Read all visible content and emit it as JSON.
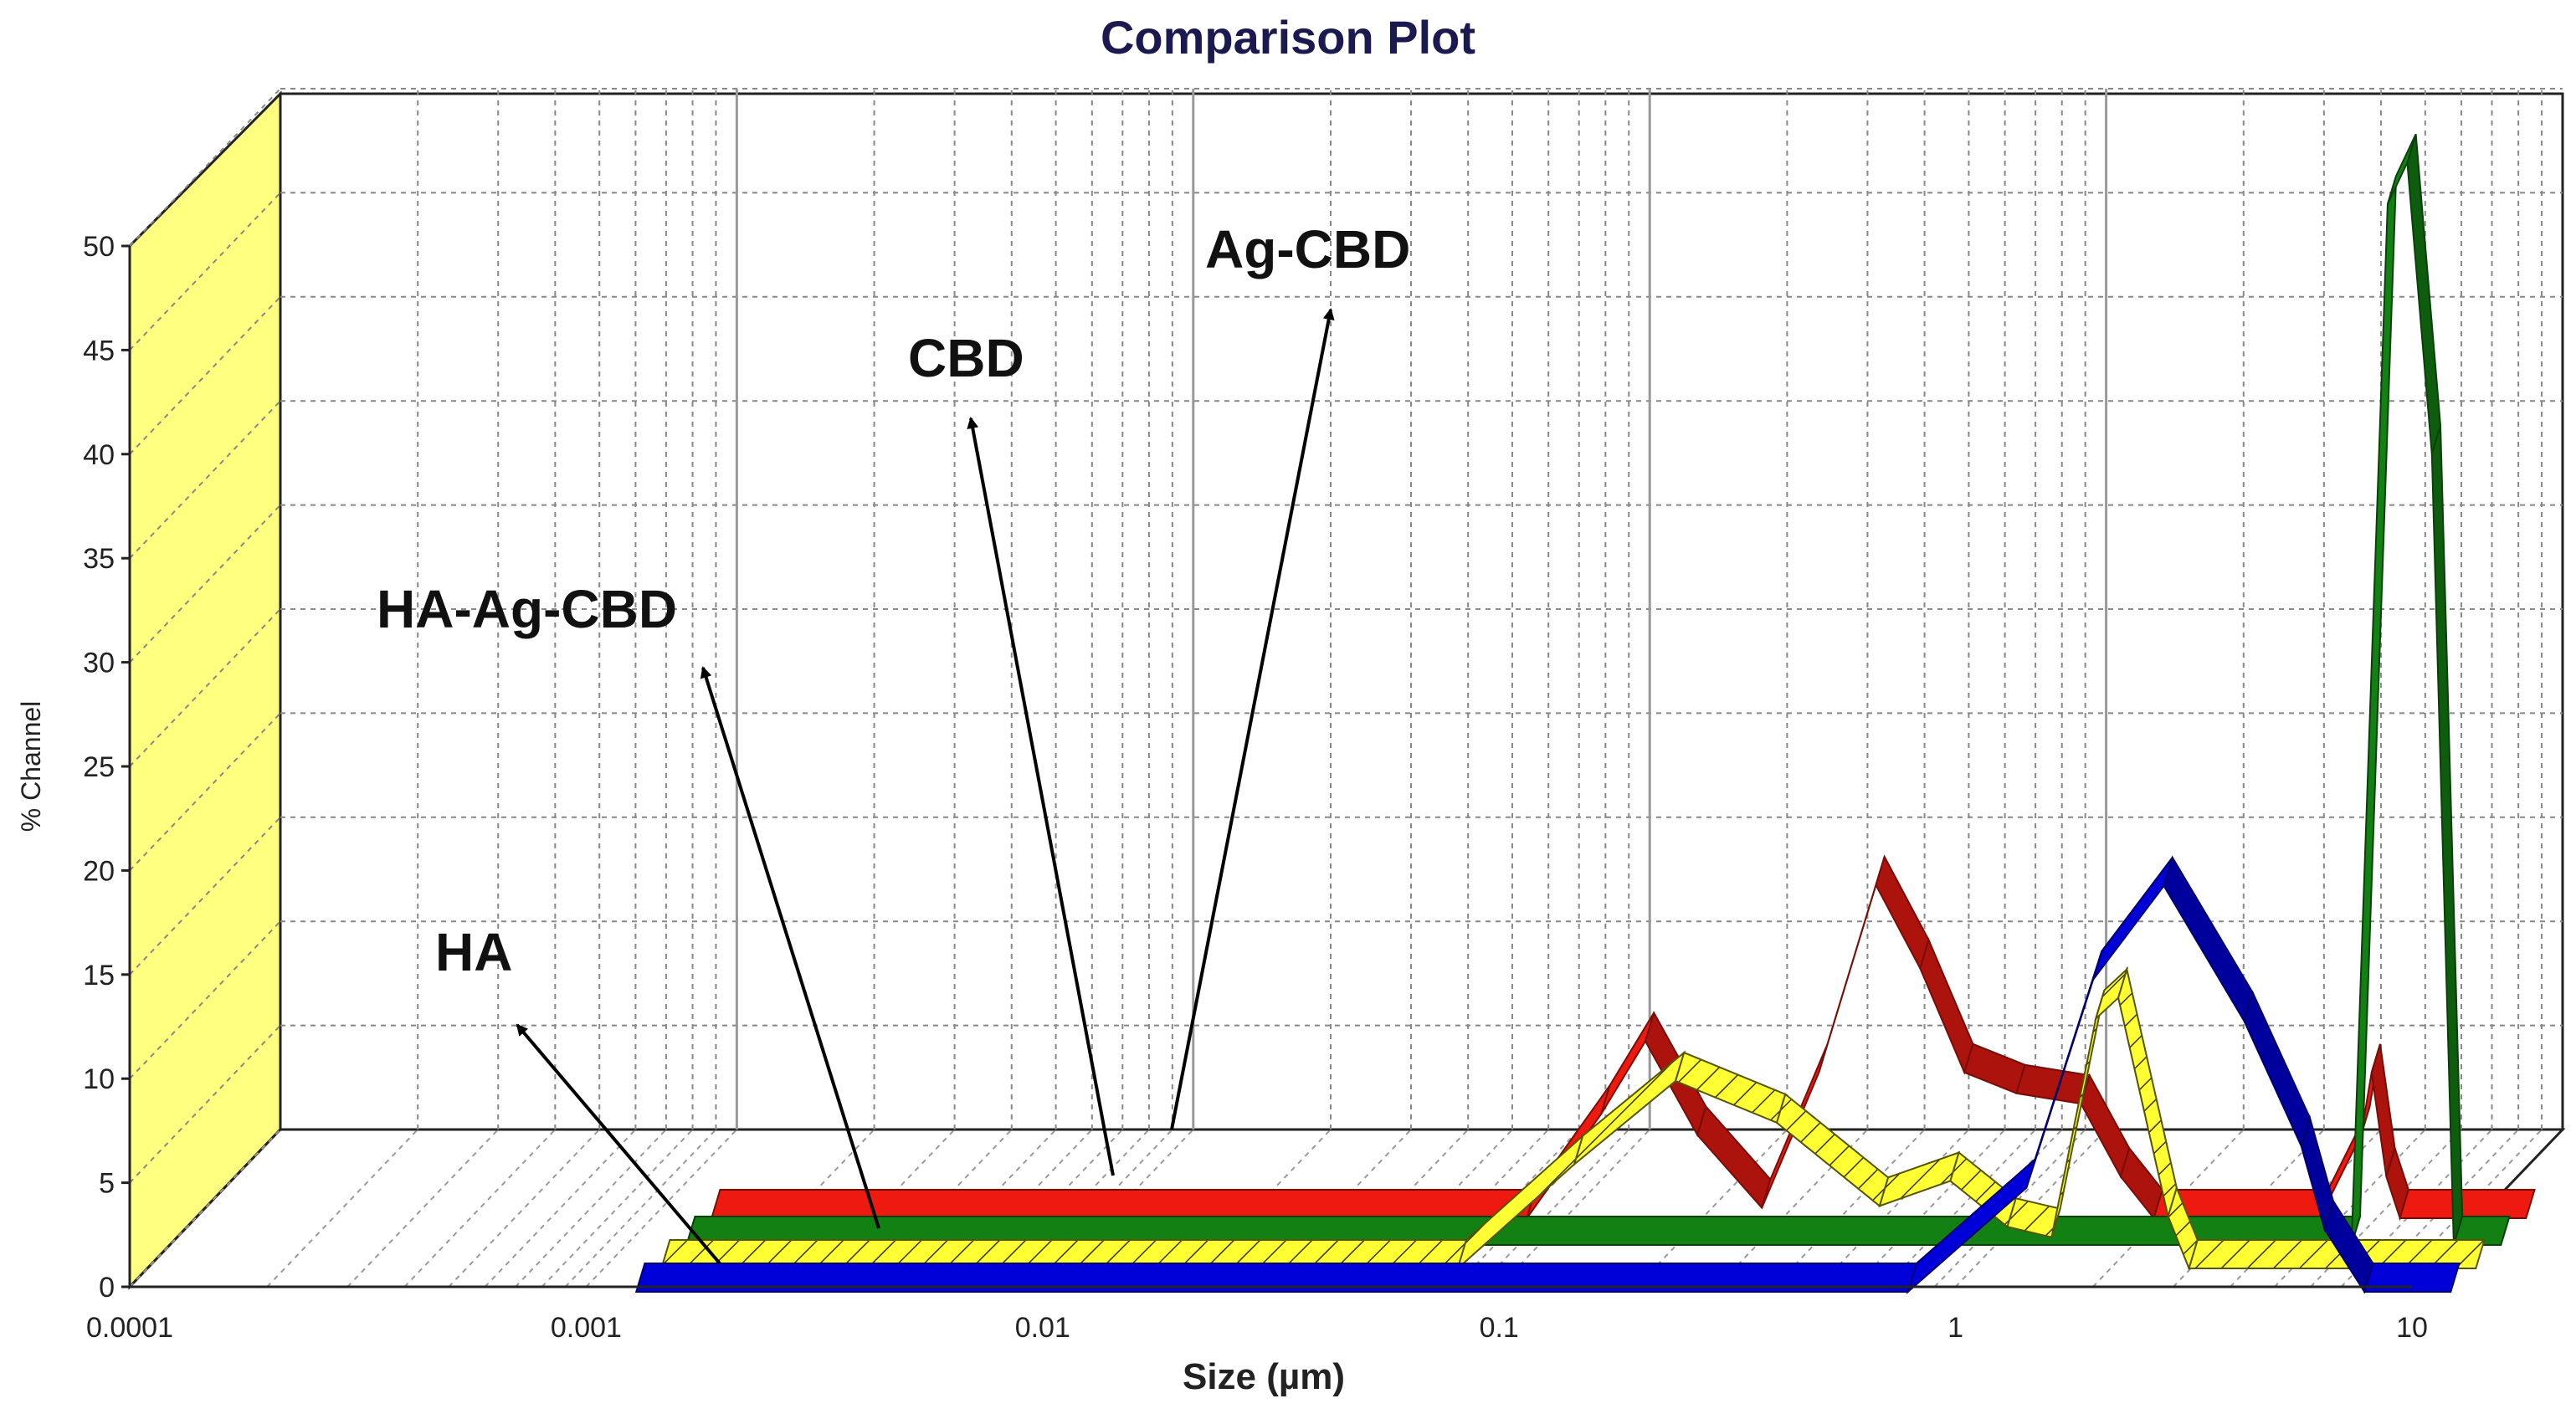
{
  "chart_data": {
    "type": "area",
    "style": "3d-ribbon",
    "title": "Comparison Plot",
    "xlabel": "Size (µm)",
    "ylabel": "% Channel",
    "x_scale": "log",
    "xlim": [
      0.0001,
      10
    ],
    "ylim": [
      0,
      50
    ],
    "x_ticks": [
      0.0001,
      0.001,
      0.01,
      0.1,
      1,
      10
    ],
    "x_tick_labels": [
      "0.0001",
      "0.001",
      "0.01",
      "0.1",
      "1",
      "10"
    ],
    "y_ticks": [
      0,
      5,
      10,
      15,
      20,
      25,
      30,
      35,
      40,
      45,
      50
    ],
    "y_tick_labels": [
      "0",
      "5",
      "10",
      "15",
      "20",
      "25",
      "30",
      "35",
      "40",
      "45",
      "50"
    ],
    "grid": true,
    "series": [
      {
        "name": "HA",
        "color": "#0000d8",
        "pattern": "solid",
        "points": [
          [
            0.0009,
            0
          ],
          [
            0.55,
            0
          ],
          [
            1.0,
            5
          ],
          [
            1.4,
            15
          ],
          [
            2.0,
            19.5
          ],
          [
            3.0,
            13
          ],
          [
            4.0,
            7
          ],
          [
            4.5,
            3
          ],
          [
            5.5,
            0
          ],
          [
            8.5,
            0
          ]
        ]
      },
      {
        "name": "HA-Ag-CBD",
        "color": "#ffff33",
        "pattern": "hatched",
        "points": [
          [
            0.0009,
            0
          ],
          [
            0.05,
            0
          ],
          [
            0.09,
            5
          ],
          [
            0.15,
            9
          ],
          [
            0.25,
            7
          ],
          [
            0.42,
            3
          ],
          [
            0.6,
            4.2
          ],
          [
            0.8,
            2
          ],
          [
            1.0,
            1.5
          ],
          [
            1.25,
            12
          ],
          [
            1.4,
            13
          ],
          [
            1.8,
            2.5
          ],
          [
            2.0,
            0
          ],
          [
            8.5,
            0
          ]
        ]
      },
      {
        "name": "CBD",
        "color": "#138013",
        "pattern": "solid",
        "points": [
          [
            0.0009,
            0
          ],
          [
            4.0,
            0
          ],
          [
            4.8,
            50
          ],
          [
            5.3,
            52
          ],
          [
            6.0,
            38
          ],
          [
            6.7,
            0
          ],
          [
            8.5,
            0
          ]
        ]
      },
      {
        "name": "Ag-CBD",
        "color": "#ee1a10",
        "pattern": "solid",
        "points": [
          [
            0.0009,
            0
          ],
          [
            0.055,
            0
          ],
          [
            0.08,
            5
          ],
          [
            0.1,
            8.5
          ],
          [
            0.13,
            4
          ],
          [
            0.18,
            0.5
          ],
          [
            0.24,
            7
          ],
          [
            0.32,
            16
          ],
          [
            0.4,
            12
          ],
          [
            0.5,
            7
          ],
          [
            0.65,
            6
          ],
          [
            0.9,
            5.5
          ],
          [
            1.1,
            2
          ],
          [
            1.3,
            0
          ],
          [
            3.0,
            0
          ],
          [
            3.7,
            4
          ],
          [
            3.9,
            7
          ],
          [
            4.2,
            2
          ],
          [
            4.5,
            0
          ],
          [
            8.5,
            0
          ]
        ]
      }
    ],
    "annotations": [
      {
        "text": "Ag-CBD",
        "series": "Ag-CBD"
      },
      {
        "text": "CBD",
        "series": "CBD"
      },
      {
        "text": "HA-Ag-CBD",
        "series": "HA-Ag-CBD"
      },
      {
        "text": "HA",
        "series": "HA"
      }
    ]
  }
}
